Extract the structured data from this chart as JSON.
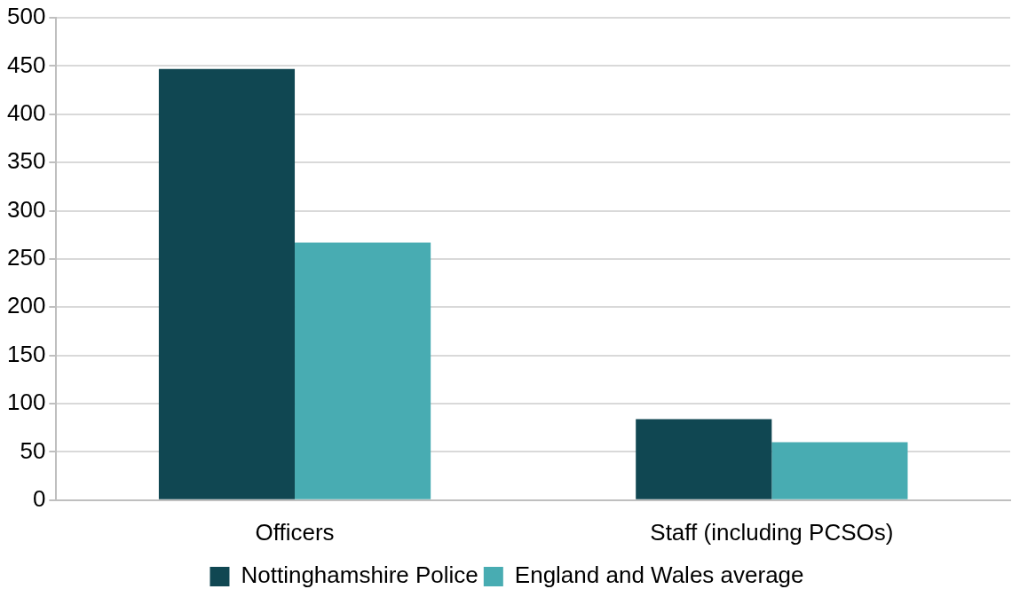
{
  "chart_data": {
    "type": "bar",
    "categories": [
      "Officers",
      "Staff (including PCSOs)"
    ],
    "series": [
      {
        "name": "Nottinghamshire Police",
        "color": "#104752",
        "values": [
          447,
          84
        ]
      },
      {
        "name": "England and Wales average",
        "color": "#48acb2",
        "values": [
          267,
          60
        ]
      }
    ],
    "ylim": [
      0,
      500
    ],
    "yticks": [
      0,
      50,
      100,
      150,
      200,
      250,
      300,
      350,
      400,
      450,
      500
    ],
    "grid": "y",
    "legend": "bottom"
  }
}
